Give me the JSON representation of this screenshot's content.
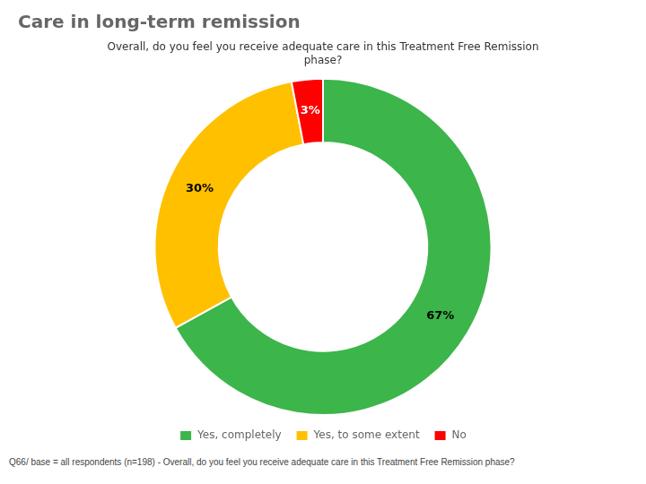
{
  "chart_data": {
    "type": "doughnut",
    "title": "Care in long-term remission",
    "subtitle": "Overall, do you feel you receive adequate care in this Treatment Free Remission\nphase?",
    "categories": [
      "Yes, completely",
      "Yes, to some extent",
      "No"
    ],
    "values": [
      67,
      30,
      3
    ],
    "value_labels": [
      "67%",
      "30%",
      "3%"
    ],
    "colors": [
      "#3CB54A",
      "#FFC000",
      "#FF0000"
    ],
    "data_labels": true,
    "legend": "bottom",
    "footnote": "Q66/ base = all respondents (n=198) - Overall, do you feel you receive adequate care in this Treatment Free Remission phase?"
  }
}
